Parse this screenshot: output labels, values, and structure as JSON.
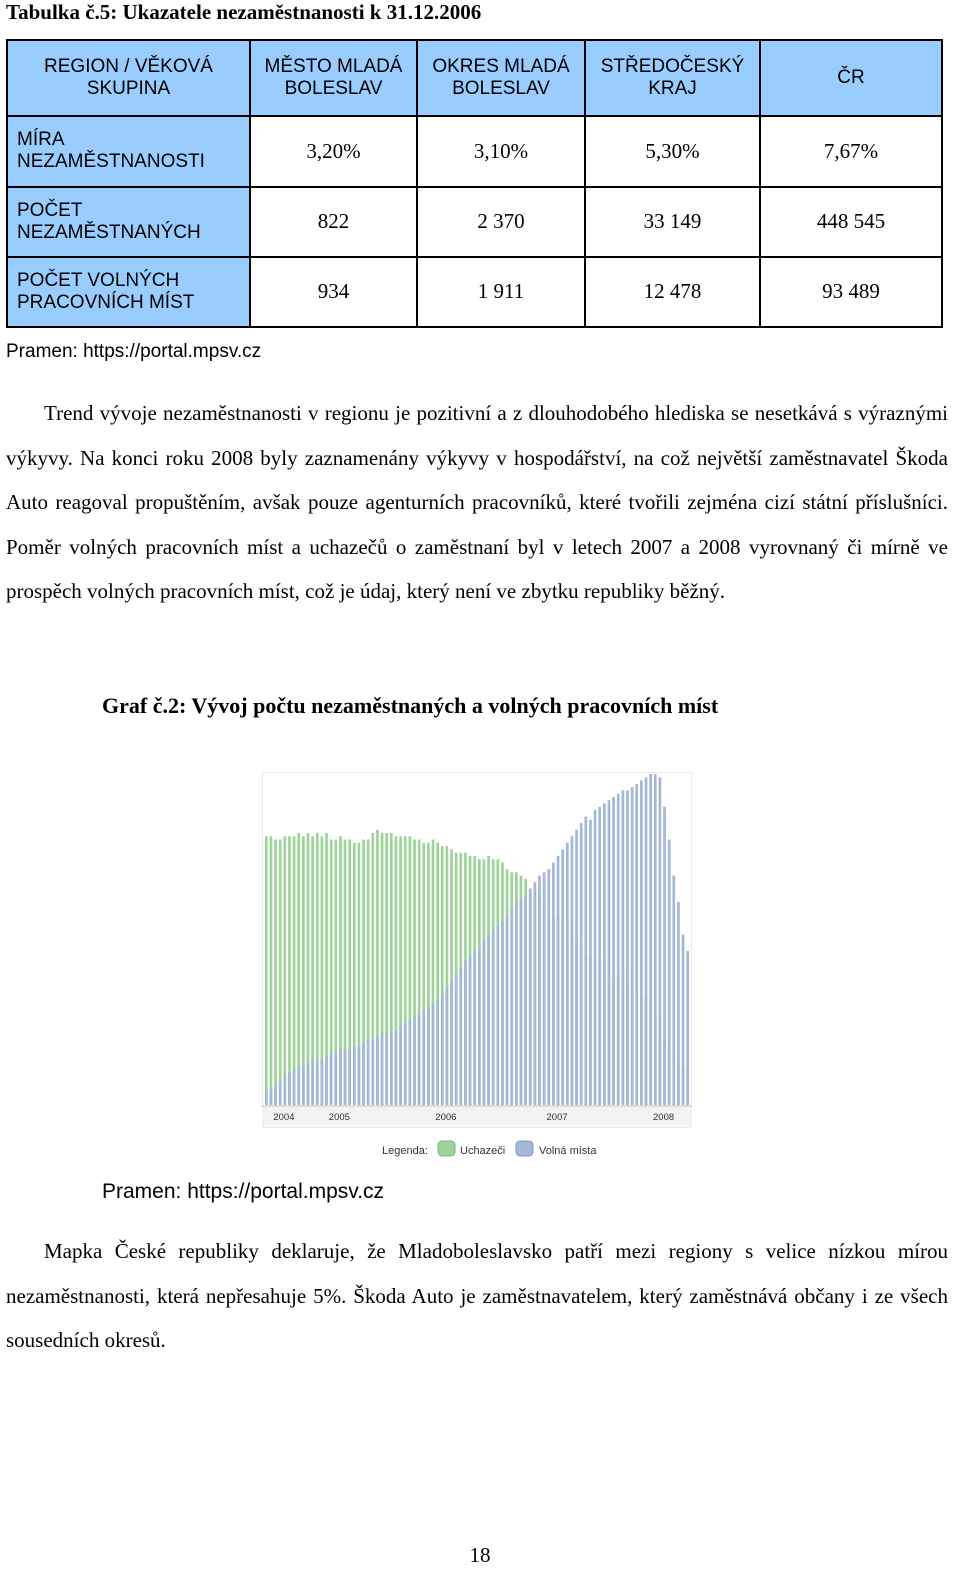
{
  "table": {
    "caption": "Tabulka č.5: Ukazatele nezaměstnanosti k 31.12.2006",
    "corner": "REGION / VĚKOVÁ SKUPINA",
    "columns": [
      "MĚSTO MLADÁ BOLESLAV",
      "OKRES MLADÁ BOLESLAV",
      "STŘEDOČESKÝ KRAJ",
      "ČR"
    ],
    "rows": [
      {
        "label": "MÍRA NEZAMĚSTNANOSTI",
        "values": [
          "3,20%",
          "3,10%",
          "5,30%",
          "7,67%"
        ]
      },
      {
        "label": "POČET NEZAMĚSTNANÝCH",
        "values": [
          "822",
          "2 370",
          "33 149",
          "448 545"
        ]
      },
      {
        "label": "POČET VOLNÝCH PRACOVNÍCH MÍST",
        "values": [
          "934",
          "1 911",
          "12 478",
          "93 489"
        ]
      }
    ],
    "source": "Pramen: https://portal.mpsv.cz"
  },
  "paragraph1": "Trend vývoje nezaměstnanosti v regionu je pozitivní a z dlouhodobého hlediska se nesetkává s výraznými výkyvy. Na konci roku 2008 byly zaznamenány výkyvy v hospodářství, na což největší zaměstnavatel Škoda Auto reagoval propuštěním, avšak pouze agenturních pracovníků, které tvořili zejména cizí státní příslušníci. Poměr volných pracovních míst a uchazečů o zaměstnaní byl v letech 2007 a 2008 vyrovnaný či mírně ve prospěch volných pracovních míst, což je údaj, který není ve zbytku republiky běžný.",
  "chart": {
    "caption": "Graf č.2: Vývoj počtu nezaměstnaných a volných pracovních míst",
    "source": "Pramen: https://portal.mpsv.cz",
    "legend_title": "Legenda:",
    "colors": {
      "uchazeci": "#9ed49a",
      "volna": "#a3b8d6",
      "frame": "#e6e6e6"
    }
  },
  "chart_data": {
    "type": "bar",
    "x_tick_labels": [
      "2004",
      "2005",
      "2006",
      "2007",
      "2008"
    ],
    "series": [
      {
        "name": "Uchazeči",
        "values": [
          82,
          82,
          81,
          81,
          82,
          82,
          82,
          83,
          82,
          83,
          82,
          83,
          82,
          83,
          81,
          81,
          82,
          81,
          81,
          80,
          80,
          81,
          81,
          83,
          84,
          83,
          83,
          83,
          82,
          82,
          82,
          82,
          81,
          81,
          80,
          80,
          81,
          80,
          79,
          79,
          78,
          77,
          77,
          77,
          76,
          76,
          75,
          75,
          76,
          75,
          75,
          74,
          72,
          71,
          71,
          70,
          69,
          66,
          65,
          64,
          62,
          58,
          57,
          58,
          56,
          55,
          53,
          51,
          49,
          46,
          45,
          45,
          45,
          42,
          40,
          38,
          39,
          40,
          37,
          35,
          35,
          34,
          33,
          32,
          27,
          25,
          20,
          18,
          16,
          12,
          11,
          11
        ]
      },
      {
        "name": "Volná místa",
        "values": [
          4,
          5,
          6,
          7,
          9,
          10,
          11,
          12,
          12,
          13,
          14,
          14,
          14,
          15,
          16,
          16,
          17,
          17,
          17,
          18,
          18,
          19,
          20,
          20,
          21,
          22,
          22,
          22,
          23,
          24,
          25,
          26,
          27,
          28,
          29,
          30,
          31,
          32,
          34,
          36,
          38,
          40,
          42,
          44,
          46,
          47,
          48,
          50,
          52,
          53,
          55,
          56,
          58,
          60,
          62,
          63,
          64,
          66,
          68,
          70,
          71,
          72,
          74,
          76,
          78,
          80,
          82,
          84,
          86,
          88,
          87,
          90,
          91,
          92,
          93,
          94,
          95,
          96,
          96,
          97,
          98,
          99,
          100,
          101,
          101,
          100,
          91,
          81,
          70,
          62,
          52,
          47
        ]
      }
    ],
    "ylim": [
      0,
      101
    ],
    "grid": false,
    "legend": "bottom"
  },
  "paragraph2": "Mapka České republiky deklaruje, že Mladoboleslavsko patří mezi regiony s velice nízkou mírou nezaměstnanosti, která nepřesahuje 5%. Škoda Auto je zaměstnavatelem, který zaměstnává občany i ze všech sousedních okresů.",
  "page_number": "18"
}
